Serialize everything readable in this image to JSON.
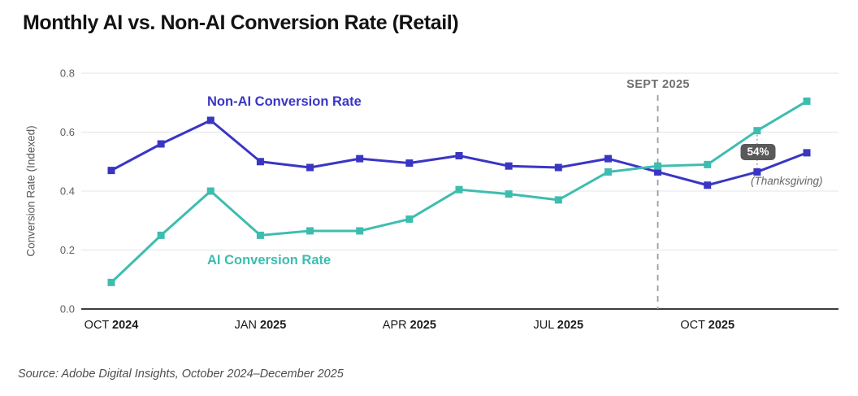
{
  "page": {
    "title": "Monthly AI vs. Non-AI Conversion Rate (Retail)",
    "source": "Source: Adobe Digital Insights, October 2024–December 2025"
  },
  "colors": {
    "non_ai": "#3a36c4",
    "ai": "#3dbdb0",
    "grid": "#e4e4e4",
    "axis": "#3d3d3d",
    "tick_text": "#5f5f5f",
    "xtick_text": "#1b1b1b",
    "annotation_line": "#9c9c9c",
    "badge_bg": "#595959",
    "badge_text": "#ffffff"
  },
  "chart_data": {
    "type": "line",
    "title": "Monthly AI vs. Non-AI Conversion Rate (Retail)",
    "xlabel": "",
    "ylabel": "Conversion Rate (Indexed)",
    "ylim": [
      0,
      0.8
    ],
    "yticks": [
      0,
      0.2,
      0.4,
      0.6,
      0.8
    ],
    "grid": true,
    "legend_position": "inline",
    "x": [
      "OCT 2024",
      "NOV 2024",
      "DEC 2024",
      "JAN 2025",
      "FEB 2025",
      "MAR 2025",
      "APR 2025",
      "MAY 2025",
      "JUN 2025",
      "JUL 2025",
      "AUG 2025",
      "SEP 2025",
      "OCT 2025",
      "NOV 2025",
      "DEC 2025"
    ],
    "xticks": [
      {
        "index": 0,
        "month": "OCT",
        "year": "2024"
      },
      {
        "index": 3,
        "month": "JAN",
        "year": "2025"
      },
      {
        "index": 6,
        "month": "APR",
        "year": "2025"
      },
      {
        "index": 9,
        "month": "JUL",
        "year": "2025"
      },
      {
        "index": 12,
        "month": "OCT",
        "year": "2025"
      }
    ],
    "series": [
      {
        "name": "Non-AI Conversion Rate",
        "color": "#3a36c4",
        "marker": "square",
        "values": [
          0.47,
          0.56,
          0.64,
          0.5,
          0.48,
          0.51,
          0.495,
          0.52,
          0.485,
          0.48,
          0.51,
          0.465,
          0.42,
          0.465,
          0.53
        ]
      },
      {
        "name": "AI Conversion Rate",
        "color": "#3dbdb0",
        "marker": "square",
        "values": [
          0.09,
          0.25,
          0.4,
          0.25,
          0.265,
          0.265,
          0.305,
          0.405,
          0.39,
          0.37,
          0.465,
          0.485,
          0.49,
          0.605,
          0.705
        ]
      }
    ],
    "annotations": {
      "vline": {
        "label": "SEPT 2025",
        "month": "SEP 2025",
        "index": 11
      },
      "badge": {
        "text": "54%",
        "month": "NOV 2025",
        "index": 13
      },
      "note": {
        "text": "(Thanksgiving)",
        "month": "NOV 2025",
        "index": 13
      }
    }
  }
}
